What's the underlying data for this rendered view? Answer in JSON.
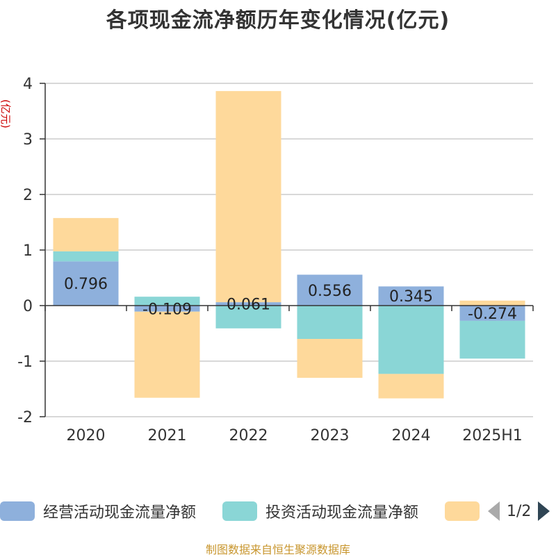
{
  "title": "各项现金流净额历年变化情况(亿元)",
  "source": "制图数据来自恒生聚源数据库",
  "legend": {
    "items": [
      {
        "label": "经营活动现金流量净额",
        "color": "#8eb0dc"
      },
      {
        "label": "投资活动现金流量净额",
        "color": "#8ad6d6"
      },
      {
        "label": "",
        "color": "#fed99b"
      }
    ],
    "page": "1/2"
  },
  "chart_data": {
    "type": "bar",
    "stacked": true,
    "y_unit_label": "(亿元)",
    "categories": [
      "2020",
      "2021",
      "2022",
      "2023",
      "2024",
      "2025H1"
    ],
    "ylim": [
      -2,
      4
    ],
    "yticks": [
      4,
      3,
      2,
      1,
      0,
      -1,
      -2
    ],
    "grid": true,
    "legend_position": "bottom",
    "series": [
      {
        "name": "经营活动现金流量净额",
        "color": "#8eb0dc",
        "values": [
          0.796,
          -0.109,
          0.061,
          0.556,
          0.345,
          -0.274
        ],
        "labels": [
          "0.796",
          "-0.109",
          "0.061",
          "0.556",
          "0.345",
          "-0.274"
        ]
      },
      {
        "name": "投资活动现金流量净额",
        "color": "#8ad6d6",
        "values": [
          0.18,
          0.16,
          -0.41,
          -0.6,
          -1.23,
          -0.68
        ]
      },
      {
        "color": "#fed99b",
        "values": [
          0.6,
          -1.55,
          3.8,
          -0.7,
          -0.44,
          0.09
        ]
      }
    ]
  }
}
